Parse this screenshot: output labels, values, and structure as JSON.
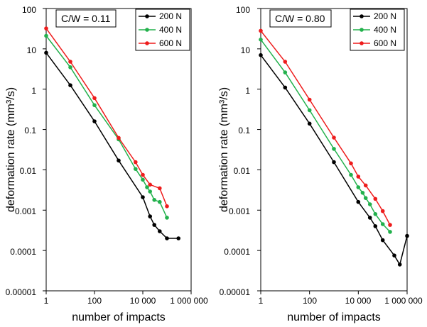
{
  "chart_data": [
    {
      "type": "line",
      "annotation": "C/W = 0.11",
      "xlabel": "number of impacts",
      "ylabel": "deformation rate (mm³/s)",
      "xscale": "log",
      "yscale": "log",
      "xlim": [
        1,
        1000000
      ],
      "ylim": [
        1e-05,
        100
      ],
      "x_tick_labels": [
        "1",
        "100",
        "10 000",
        "1 000 000"
      ],
      "y_tick_labels": [
        "0.00001",
        "0.0001",
        "0.001",
        "0.01",
        "0.1",
        "1",
        "10",
        "100"
      ],
      "legend_position": "top-right",
      "series": [
        {
          "name": "200 N",
          "color": "#000000",
          "x": [
            1,
            10,
            100,
            1000,
            10000,
            20000,
            30000,
            50000,
            100000,
            300000
          ],
          "y": [
            8,
            1.25,
            0.16,
            0.017,
            0.0021,
            0.0007,
            0.00043,
            0.0003,
            0.0002,
            0.0002
          ]
        },
        {
          "name": "400 N",
          "color": "#22b14c",
          "x": [
            1,
            10,
            100,
            1000,
            5000,
            10000,
            15000,
            20000,
            30000,
            50000,
            100000
          ],
          "y": [
            21,
            3.5,
            0.4,
            0.057,
            0.0105,
            0.0057,
            0.0037,
            0.0029,
            0.0018,
            0.0016,
            0.00065
          ]
        },
        {
          "name": "600 N",
          "color": "#ee1c1c",
          "x": [
            1,
            10,
            100,
            1000,
            5000,
            10000,
            20000,
            50000,
            100000
          ],
          "y": [
            32,
            4.8,
            0.6,
            0.062,
            0.0155,
            0.0075,
            0.0043,
            0.0035,
            0.00125
          ]
        }
      ]
    },
    {
      "type": "line",
      "annotation": "C/W = 0.80",
      "xlabel": "number of impacts",
      "ylabel": "deformation rate (mm³/s)",
      "xscale": "log",
      "yscale": "log",
      "xlim": [
        1,
        1000000
      ],
      "ylim": [
        1e-05,
        100
      ],
      "x_tick_labels": [
        "1",
        "100",
        "10 000",
        "1 000 000"
      ],
      "y_tick_labels": [
        "0.00001",
        "0.0001",
        "0.001",
        "0.01",
        "0.1",
        "1",
        "10",
        "100"
      ],
      "legend_position": "top-right",
      "series": [
        {
          "name": "200 N",
          "color": "#000000",
          "x": [
            1,
            10,
            100,
            1000,
            10000,
            30000,
            50000,
            100000,
            300000,
            500000,
            1000000
          ],
          "y": [
            7,
            1.1,
            0.14,
            0.0155,
            0.0016,
            0.00065,
            0.0004,
            0.00018,
            7.5e-05,
            4.5e-05,
            0.00023
          ]
        },
        {
          "name": "400 N",
          "color": "#22b14c",
          "x": [
            1,
            10,
            100,
            1000,
            5000,
            10000,
            15000,
            20000,
            30000,
            50000,
            100000,
            200000
          ],
          "y": [
            17,
            2.6,
            0.3,
            0.033,
            0.0075,
            0.0037,
            0.0027,
            0.002,
            0.0014,
            0.0008,
            0.00045,
            0.00029
          ]
        },
        {
          "name": "600 N",
          "color": "#ee1c1c",
          "x": [
            1,
            10,
            100,
            1000,
            5000,
            10000,
            20000,
            50000,
            100000,
            200000
          ],
          "y": [
            28,
            4.8,
            0.55,
            0.063,
            0.0145,
            0.0068,
            0.0041,
            0.0019,
            0.00095,
            0.00043
          ]
        }
      ]
    }
  ]
}
